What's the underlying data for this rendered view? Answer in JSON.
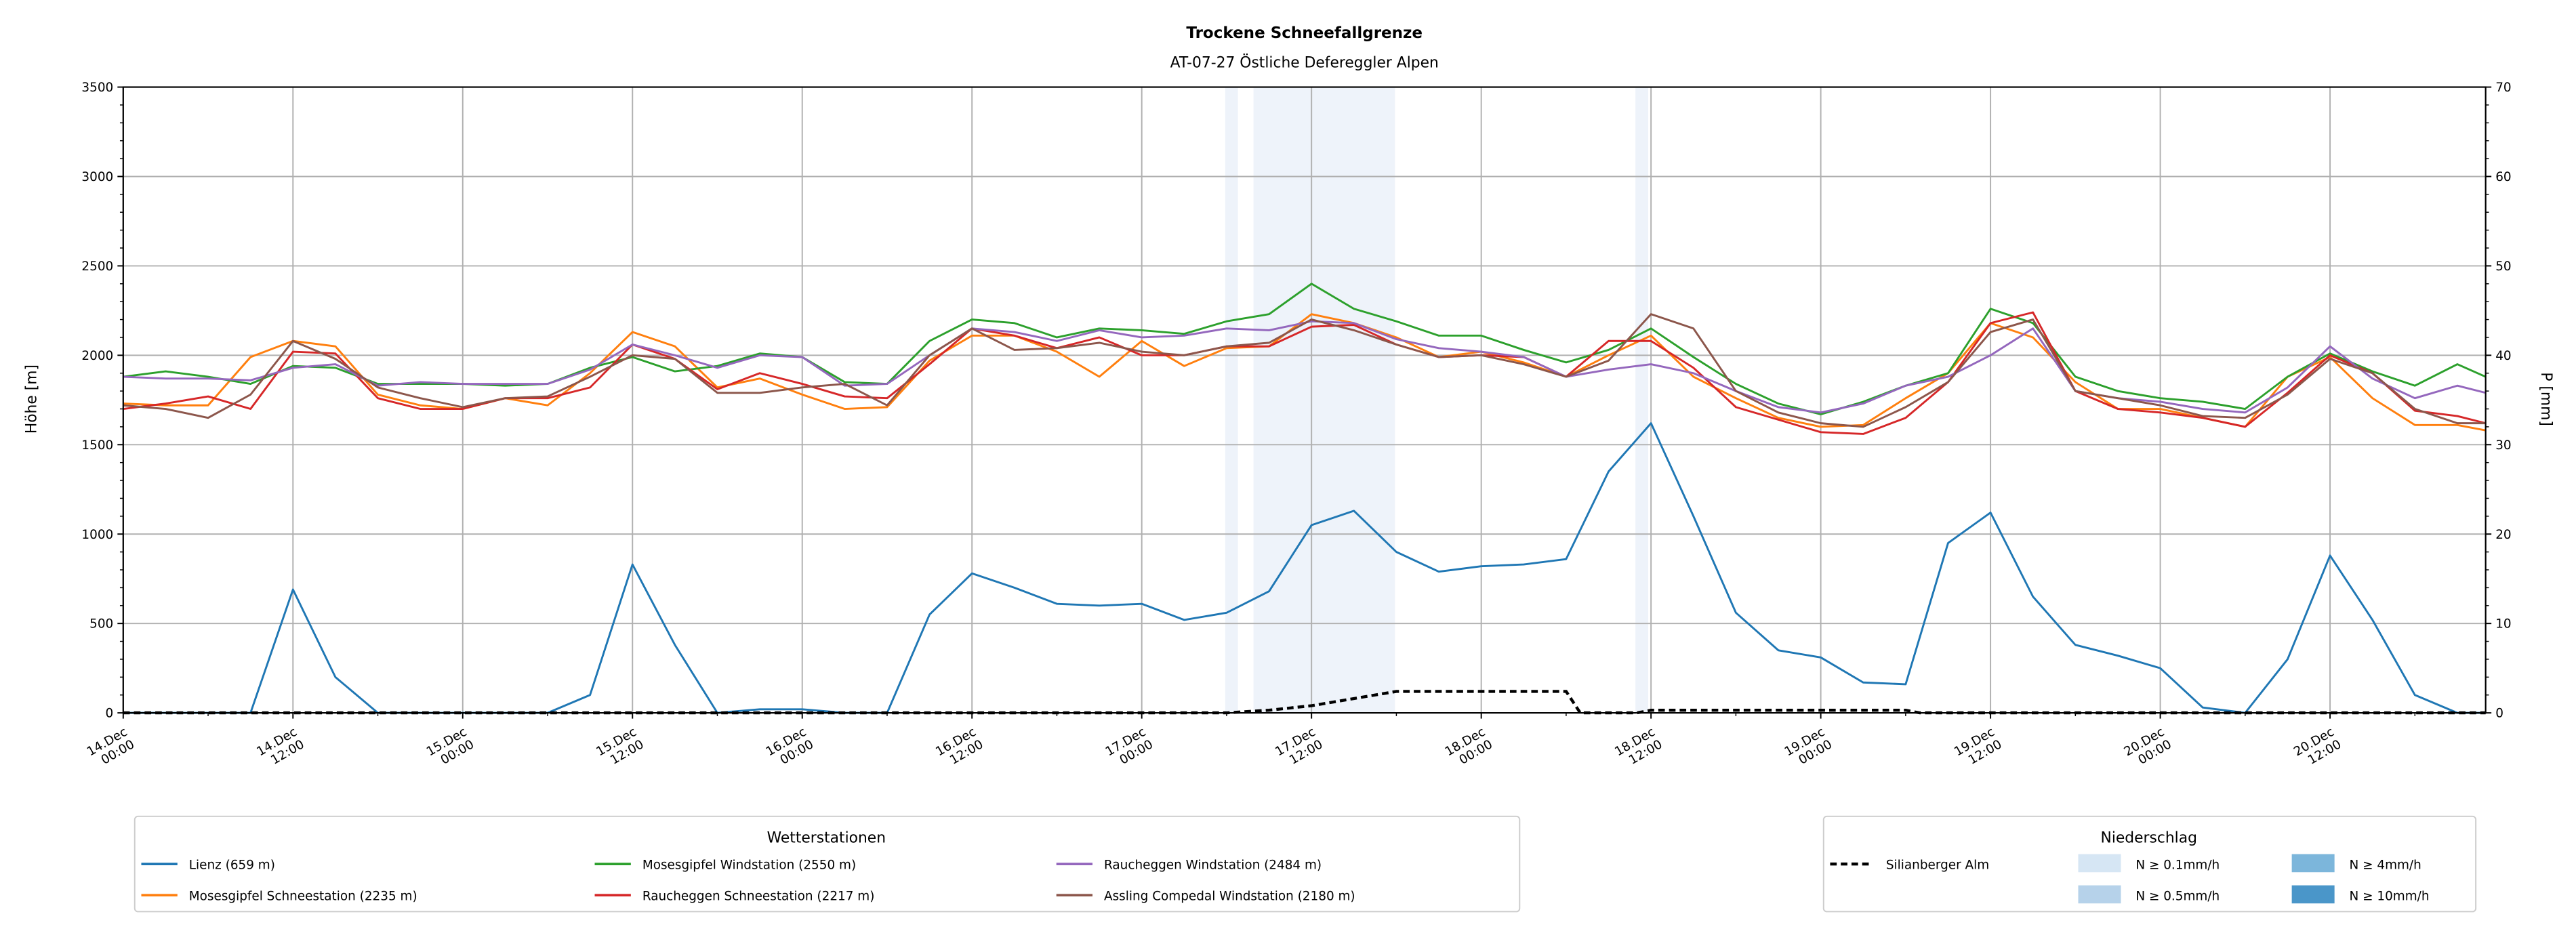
{
  "chart_data": {
    "type": "line",
    "title": "Trockene Schneefallgrenze",
    "subtitle": "AT-07-27 Östliche Defereggler Alpen",
    "ylabel": "Höhe [m]",
    "y2label": "P [mm]",
    "ylim": [
      0,
      3500
    ],
    "y2lim": [
      0,
      70
    ],
    "yticks": [
      "0",
      "500",
      "1000",
      "1500",
      "2000",
      "2500",
      "3000",
      "3500"
    ],
    "y2ticks": [
      "0",
      "10",
      "20",
      "30",
      "40",
      "50",
      "60",
      "70"
    ],
    "xlim_hours": [
      0,
      167
    ],
    "xticks": [
      [
        "14.Dec",
        "00:00"
      ],
      [
        "14.Dec",
        "12:00"
      ],
      [
        "15.Dec",
        "00:00"
      ],
      [
        "15.Dec",
        "12:00"
      ],
      [
        "16.Dec",
        "00:00"
      ],
      [
        "16.Dec",
        "12:00"
      ],
      [
        "17.Dec",
        "00:00"
      ],
      [
        "17.Dec",
        "12:00"
      ],
      [
        "18.Dec",
        "00:00"
      ],
      [
        "18.Dec",
        "12:00"
      ],
      [
        "19.Dec",
        "00:00"
      ],
      [
        "19.Dec",
        "12:00"
      ],
      [
        "20.Dec",
        "00:00"
      ],
      [
        "20.Dec",
        "12:00"
      ]
    ],
    "grid": true,
    "x_hours_step": 3,
    "series": [
      {
        "name": "Lienz (659 m)",
        "color": "#1f77b4",
        "values": [
          0,
          0,
          0,
          0,
          690,
          200,
          0,
          0,
          0,
          0,
          0,
          100,
          830,
          380,
          0,
          20,
          20,
          0,
          0,
          550,
          780,
          700,
          610,
          600,
          610,
          520,
          560,
          680,
          1050,
          1130,
          900,
          790,
          820,
          830,
          860,
          1350,
          1620,
          1100,
          560,
          350,
          310,
          170,
          160,
          950,
          1120,
          650,
          380,
          320,
          250,
          30,
          0,
          300,
          880,
          520,
          100,
          0,
          0
        ]
      },
      {
        "name": "Mosesgipfel Schneestation (2235 m)",
        "color": "#ff7f0e",
        "values": [
          1730,
          1720,
          1720,
          1990,
          2080,
          2050,
          1780,
          1720,
          1700,
          1760,
          1720,
          1900,
          2130,
          2050,
          1820,
          1870,
          1780,
          1700,
          1710,
          1970,
          2110,
          2110,
          2020,
          1880,
          2080,
          1940,
          2040,
          2050,
          2230,
          2180,
          2100,
          1990,
          2020,
          1960,
          1880,
          2000,
          2110,
          1880,
          1760,
          1650,
          1600,
          1610,
          1760,
          1900,
          2180,
          2100,
          1850,
          1700,
          1700,
          1650,
          1600,
          1880,
          1990,
          1760,
          1610,
          1610,
          1580
        ]
      },
      {
        "name": "Mosesgipfel Windstation (2550 m)",
        "color": "#2ca02c",
        "values": [
          1880,
          1910,
          1880,
          1840,
          1940,
          1930,
          1840,
          1840,
          1840,
          1830,
          1840,
          1930,
          1990,
          1910,
          1940,
          2010,
          1990,
          1850,
          1840,
          2080,
          2200,
          2180,
          2100,
          2150,
          2140,
          2120,
          2190,
          2230,
          2400,
          2260,
          2190,
          2110,
          2110,
          2030,
          1960,
          2030,
          2150,
          1990,
          1840,
          1730,
          1670,
          1740,
          1830,
          1900,
          2260,
          2180,
          1880,
          1800,
          1760,
          1740,
          1700,
          1880,
          2010,
          1910,
          1830,
          1950,
          1880
        ]
      },
      {
        "name": "Raucheggen Schneestation (2217 m)",
        "color": "#d62728",
        "values": [
          1700,
          1730,
          1770,
          1700,
          2020,
          2010,
          1760,
          1700,
          1700,
          1760,
          1760,
          1820,
          2060,
          1980,
          1810,
          1900,
          1840,
          1770,
          1760,
          1950,
          2150,
          2110,
          2040,
          2100,
          2000,
          2000,
          2050,
          2050,
          2160,
          2170,
          2060,
          1990,
          2000,
          1990,
          1880,
          2080,
          2080,
          1930,
          1710,
          1640,
          1570,
          1560,
          1650,
          1850,
          2180,
          2240,
          1800,
          1700,
          1680,
          1650,
          1600,
          1790,
          2000,
          1900,
          1690,
          1660,
          1620
        ]
      },
      {
        "name": "Raucheggen Windstation (2484 m)",
        "color": "#9467bd",
        "values": [
          1880,
          1870,
          1870,
          1860,
          1930,
          1950,
          1830,
          1850,
          1840,
          1840,
          1840,
          1920,
          2060,
          2000,
          1930,
          2000,
          1990,
          1830,
          1840,
          2000,
          2150,
          2130,
          2080,
          2140,
          2100,
          2110,
          2150,
          2140,
          2190,
          2180,
          2090,
          2040,
          2020,
          1990,
          1880,
          1920,
          1950,
          1900,
          1800,
          1710,
          1680,
          1730,
          1830,
          1880,
          2000,
          2150,
          1800,
          1760,
          1740,
          1700,
          1680,
          1820,
          2050,
          1870,
          1760,
          1830,
          1790
        ]
      },
      {
        "name": "Assling Compedal Windstation (2180 m)",
        "color": "#8c564b",
        "values": [
          1720,
          1700,
          1650,
          1780,
          2080,
          1980,
          1820,
          1760,
          1710,
          1760,
          1770,
          1880,
          2000,
          1980,
          1790,
          1790,
          1820,
          1840,
          1720,
          2000,
          2150,
          2030,
          2040,
          2070,
          2020,
          2000,
          2050,
          2070,
          2200,
          2140,
          2060,
          1990,
          2000,
          1950,
          1880,
          1970,
          2230,
          2150,
          1800,
          1680,
          1620,
          1600,
          1710,
          1850,
          2130,
          2200,
          1800,
          1760,
          1720,
          1660,
          1650,
          1780,
          1980,
          1900,
          1700,
          1620,
          1620
        ]
      }
    ],
    "precip_series": {
      "name": "Silianberger Alm",
      "color": "#000000",
      "hours": [
        0,
        78,
        81,
        84,
        87,
        90,
        102,
        103,
        107,
        108,
        126,
        127,
        167
      ],
      "values_mm": [
        0,
        0,
        0.3,
        0.8,
        1.6,
        2.4,
        2.4,
        0,
        0,
        0.3,
        0.3,
        0,
        0
      ]
    },
    "precip_bands": [
      {
        "start_hour": 77.9,
        "end_hour": 78.8,
        "class": "N ≥ 0.1mm/h"
      },
      {
        "start_hour": 79.9,
        "end_hour": 89.9,
        "class": "N ≥ 0.1mm/h"
      },
      {
        "start_hour": 106.9,
        "end_hour": 107.8,
        "class": "N ≥ 0.1mm/h"
      }
    ],
    "legend_stations": {
      "title": "Wetterstationen",
      "placement": "bottom-left"
    },
    "legend_precip": {
      "title": "Niederschlag",
      "placement": "bottom-right",
      "line_label": "Silianberger Alm",
      "classes": [
        {
          "label": "N ≥ 0.1mm/h",
          "color": "#d6e6f4"
        },
        {
          "label": "N ≥ 0.5mm/h",
          "color": "#b6d2ea"
        },
        {
          "label": "N ≥ 4mm/h",
          "color": "#7cb6db"
        },
        {
          "label": "N ≥ 10mm/h",
          "color": "#4a96c9"
        }
      ]
    }
  }
}
